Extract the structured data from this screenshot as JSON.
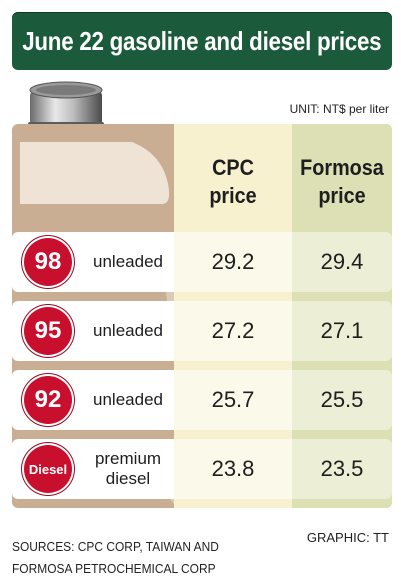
{
  "title": "June 22 gasoline and diesel prices",
  "unit": "UNIT: NT$ per liter",
  "columns": {
    "cpc": "CPC\nprice",
    "formosa": "Formosa\nprice"
  },
  "rows": [
    {
      "badge": "98",
      "grade": "unleaded",
      "cpc": "29.2",
      "formosa": "29.4"
    },
    {
      "badge": "95",
      "grade": "unleaded",
      "cpc": "27.2",
      "formosa": "27.1"
    },
    {
      "badge": "92",
      "grade": "unleaded",
      "cpc": "25.7",
      "formosa": "25.5"
    },
    {
      "badge": "Diesel",
      "grade": "premium\ndiesel",
      "cpc": "23.8",
      "formosa": "23.5"
    }
  ],
  "sources": "SOURCES: CPC CORP, TAIWAN AND\nFORMOSA PETROCHEMICAL CORP",
  "credit": "GRAPHIC: TT",
  "colors": {
    "title_bg": "#1c5a3c",
    "badge_red": "#c8102e",
    "panel_tan": "#c9ae93",
    "cpc_column": "#f7f1cf",
    "formosa_column": "#dde0b5"
  },
  "icons": [
    "oil-barrel-icon",
    "fuel-nozzle-icon"
  ]
}
